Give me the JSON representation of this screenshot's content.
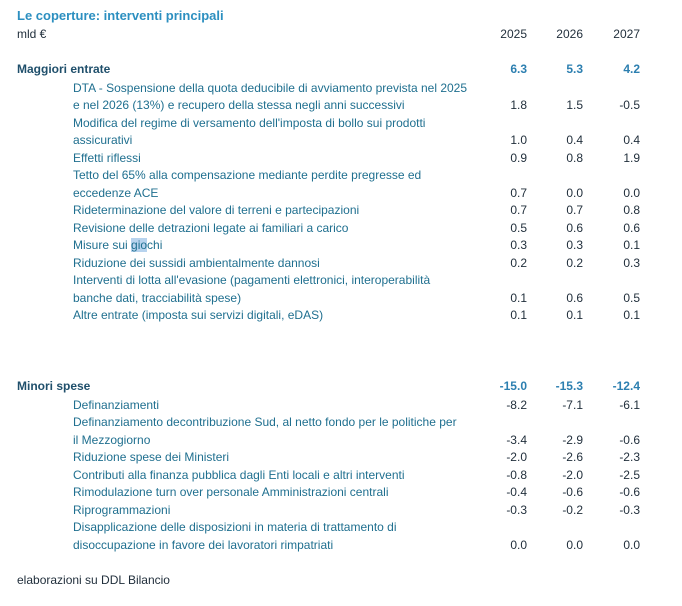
{
  "title": "Le coperture: interventi principali",
  "unit": "mld €",
  "years": [
    "2025",
    "2026",
    "2027"
  ],
  "maggiori": {
    "label": "Maggiori entrate",
    "totals": [
      "6.3",
      "5.3",
      "4.2"
    ],
    "rows": [
      {
        "lines": [
          "DTA - Sospensione della quota deducibile di avviamento prevista nel 2025",
          "e nel 2026 (13%) e recupero della stessa negli anni successivi"
        ],
        "values": [
          "1.8",
          "1.5",
          "-0.5"
        ]
      },
      {
        "lines": [
          "Modifica del regime di versamento dell'imposta di bollo sui prodotti",
          "assicurativi"
        ],
        "values": [
          "1.0",
          "0.4",
          "0.4"
        ]
      },
      {
        "lines": [
          "Effetti riflessi"
        ],
        "values": [
          "0.9",
          "0.8",
          "1.9"
        ]
      },
      {
        "lines": [
          "Tetto del 65% alla compensazione mediante perdite pregresse ed",
          "eccedenze ACE"
        ],
        "values": [
          "0.7",
          "0.0",
          "0.0"
        ]
      },
      {
        "lines": [
          "Rideterminazione del valore di terreni e partecipazioni"
        ],
        "values": [
          "0.7",
          "0.7",
          "0.8"
        ]
      },
      {
        "lines": [
          "Revisione delle detrazioni legate ai familiari a carico"
        ],
        "values": [
          "0.5",
          "0.6",
          "0.6"
        ]
      },
      {
        "lines": [
          "Misure sui giochi"
        ],
        "values": [
          "0.3",
          "0.3",
          "0.1"
        ]
      },
      {
        "lines": [
          "Riduzione dei sussidi ambientalmente dannosi"
        ],
        "values": [
          "0.2",
          "0.2",
          "0.3"
        ]
      },
      {
        "lines": [
          "Interventi di lotta all'evasione (pagamenti elettronici, interoperabilità",
          "banche dati, tracciabilità spese)"
        ],
        "values": [
          "0.1",
          "0.6",
          "0.5"
        ]
      },
      {
        "lines": [
          "Altre entrate (imposta sui servizi digitali, eDAS)"
        ],
        "values": [
          "0.1",
          "0.1",
          "0.1"
        ]
      }
    ]
  },
  "minori": {
    "label": "Minori spese",
    "totals": [
      "-15.0",
      "-15.3",
      "-12.4"
    ],
    "rows": [
      {
        "lines": [
          "Definanziamenti"
        ],
        "values": [
          "-8.2",
          "-7.1",
          "-6.1"
        ]
      },
      {
        "lines": [
          "Definanziamento decontribuzione Sud, al netto fondo per  le politiche per",
          "il Mezzogiorno"
        ],
        "values": [
          "-3.4",
          "-2.9",
          "-0.6"
        ]
      },
      {
        "lines": [
          "Riduzione spese dei Ministeri"
        ],
        "values": [
          "-2.0",
          "-2.6",
          "-2.3"
        ]
      },
      {
        "lines": [
          "Contributi alla finanza pubblica dagli Enti locali e altri interventi"
        ],
        "values": [
          "-0.8",
          "-2.0",
          "-2.5"
        ]
      },
      {
        "lines": [
          "Rimodulazione turn over personale Amministrazioni centrali"
        ],
        "values": [
          "-0.4",
          "-0.6",
          "-0.6"
        ]
      },
      {
        "lines": [
          "Riprogrammazioni"
        ],
        "values": [
          "-0.3",
          "-0.2",
          "-0.3"
        ]
      },
      {
        "lines": [
          "Disapplicazione delle disposizioni in materia di trattamento di",
          "disoccupazione in favore dei lavoratori rimpatriati"
        ],
        "values": [
          "0.0",
          "0.0",
          "0.0"
        ]
      }
    ]
  },
  "footer": "elaborazioni su DDL Bilancio"
}
